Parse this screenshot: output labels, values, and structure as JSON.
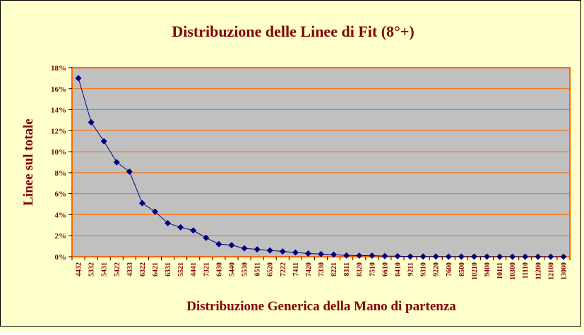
{
  "colors": {
    "page_background": "#FFFFCC",
    "plot_background": "#C0C0C0",
    "plot_border": "#FF6600",
    "gridline": "#FF6600",
    "series": "#000080",
    "title_text": "#800000",
    "axis_title_text": "#800000",
    "tick_text": "#800000"
  },
  "chart_data": {
    "type": "line",
    "title": "Distribuzione delle Linee di Fit (8°+)",
    "xlabel": "Distribuzione Generica della Mano di partenza",
    "ylabel": "Linee sul totale",
    "ylim": [
      0,
      18
    ],
    "y_tick_values": [
      0,
      2,
      4,
      6,
      8,
      10,
      12,
      14,
      16,
      18
    ],
    "y_tick_labels": [
      "0%",
      "2%",
      "4%",
      "6%",
      "8%",
      "10%",
      "12%",
      "14%",
      "16%",
      "18%"
    ],
    "grid": true,
    "legend": "none",
    "marker": "diamond",
    "categories": [
      "4432",
      "5332",
      "5431",
      "5422",
      "4333",
      "6322",
      "6421",
      "6331",
      "5521",
      "4441",
      "7321",
      "6430",
      "5440",
      "5530",
      "6511",
      "6520",
      "7222",
      "7411",
      "7420",
      "7330",
      "8221",
      "8311",
      "8320",
      "7510",
      "6610",
      "8410",
      "9211",
      "9310",
      "9220",
      "7600",
      "8500",
      "10210",
      "9400",
      "10111",
      "10300",
      "11110",
      "11200",
      "12100",
      "13000"
    ],
    "series": [
      {
        "values": [
          17.0,
          12.8,
          11.0,
          9.0,
          8.1,
          5.1,
          4.3,
          3.2,
          2.8,
          2.5,
          1.8,
          1.2,
          1.1,
          0.8,
          0.7,
          0.6,
          0.5,
          0.4,
          0.3,
          0.25,
          0.2,
          0.12,
          0.1,
          0.1,
          0.06,
          0.05,
          0.02,
          0.02,
          0.02,
          0.01,
          0.01,
          0.01,
          0.01,
          0.0,
          0.0,
          0.0,
          0.0,
          0.0,
          0.0
        ]
      }
    ]
  }
}
